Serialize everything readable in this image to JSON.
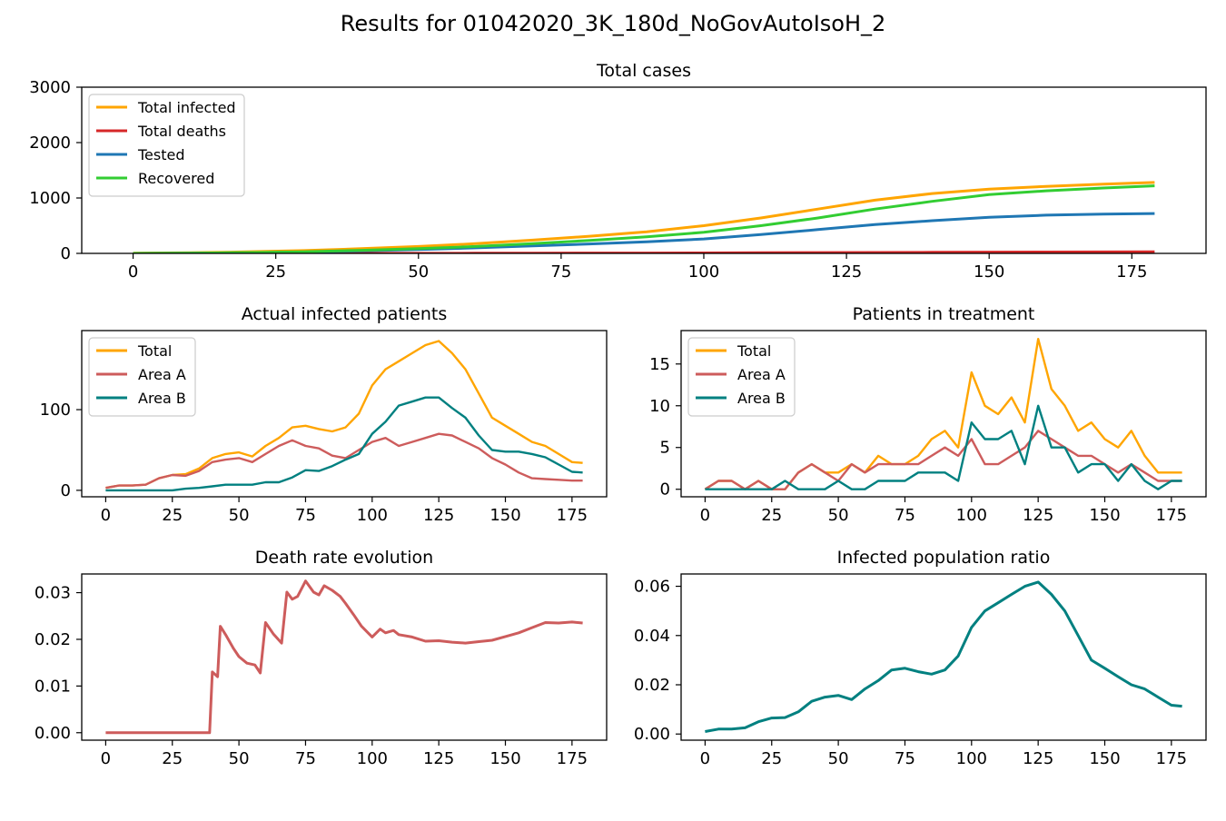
{
  "figure": {
    "title": "Results for 01042020_3K_180d_NoGovAutoIsoH_2"
  },
  "chart_data": [
    {
      "type": "line",
      "title": "Total cases",
      "xlim": [
        -9,
        188
      ],
      "ylim": [
        0,
        3000
      ],
      "xticks": [
        0,
        25,
        50,
        75,
        100,
        125,
        150,
        175
      ],
      "yticks": [
        0,
        1000,
        2000,
        3000
      ],
      "grid": false,
      "legend": "upper-left",
      "colors": {
        "Total infected": "#ffa500",
        "Total deaths": "#d62728",
        "Tested": "#1f77b4",
        "Recovered": "#32cd32"
      },
      "x": [
        0,
        10,
        20,
        30,
        40,
        50,
        60,
        70,
        80,
        90,
        100,
        110,
        120,
        130,
        140,
        150,
        160,
        170,
        179
      ],
      "series": [
        {
          "name": "Total infected",
          "values": [
            3,
            12,
            28,
            50,
            85,
            125,
            175,
            240,
            310,
            390,
            500,
            640,
            800,
            960,
            1080,
            1160,
            1210,
            1250,
            1280
          ]
        },
        {
          "name": "Total deaths",
          "values": [
            0,
            0,
            0,
            0,
            1,
            2,
            3,
            4,
            6,
            7,
            9,
            11,
            14,
            17,
            20,
            23,
            25,
            27,
            29
          ]
        },
        {
          "name": "Tested",
          "values": [
            0,
            5,
            12,
            25,
            45,
            70,
            100,
            135,
            170,
            210,
            260,
            340,
            430,
            520,
            590,
            650,
            690,
            710,
            720
          ]
        },
        {
          "name": "Recovered",
          "values": [
            0,
            5,
            15,
            30,
            55,
            85,
            125,
            175,
            235,
            300,
            380,
            500,
            640,
            800,
            940,
            1060,
            1130,
            1180,
            1220
          ]
        }
      ]
    },
    {
      "type": "line",
      "title": "Actual infected patients",
      "xlim": [
        -9,
        188
      ],
      "ylim": [
        -8,
        198
      ],
      "xticks": [
        0,
        25,
        50,
        75,
        100,
        125,
        150,
        175
      ],
      "yticks": [
        0,
        100
      ],
      "grid": false,
      "legend": "upper-left",
      "colors": {
        "Total": "#ffa500",
        "Area A": "#cd5c5c",
        "Area B": "#008080"
      },
      "x": [
        0,
        5,
        10,
        15,
        20,
        25,
        30,
        35,
        40,
        45,
        50,
        55,
        60,
        65,
        70,
        75,
        80,
        85,
        90,
        95,
        100,
        105,
        110,
        115,
        120,
        125,
        130,
        135,
        140,
        145,
        150,
        155,
        160,
        165,
        170,
        175,
        179
      ],
      "series": [
        {
          "name": "Total",
          "values": [
            3,
            6,
            6,
            7,
            15,
            19,
            20,
            27,
            40,
            45,
            47,
            42,
            55,
            65,
            78,
            80,
            76,
            73,
            78,
            95,
            130,
            150,
            160,
            170,
            180,
            185,
            170,
            150,
            120,
            90,
            80,
            70,
            60,
            55,
            45,
            35,
            34
          ]
        },
        {
          "name": "Area A",
          "values": [
            3,
            6,
            6,
            7,
            15,
            19,
            18,
            24,
            35,
            38,
            40,
            35,
            45,
            55,
            62,
            55,
            52,
            43,
            40,
            50,
            60,
            65,
            55,
            60,
            65,
            70,
            68,
            60,
            52,
            40,
            32,
            22,
            15,
            14,
            13,
            12,
            12
          ]
        },
        {
          "name": "Area B",
          "values": [
            0,
            0,
            0,
            0,
            0,
            0,
            2,
            3,
            5,
            7,
            7,
            7,
            10,
            10,
            16,
            25,
            24,
            30,
            38,
            45,
            70,
            85,
            105,
            110,
            115,
            115,
            102,
            90,
            68,
            50,
            48,
            48,
            45,
            41,
            32,
            23,
            22
          ]
        }
      ]
    },
    {
      "type": "line",
      "title": "Patients in treatment",
      "xlim": [
        -9,
        188
      ],
      "ylim": [
        -0.9,
        19
      ],
      "xticks": [
        0,
        25,
        50,
        75,
        100,
        125,
        150,
        175
      ],
      "yticks": [
        0,
        5,
        10,
        15
      ],
      "grid": false,
      "legend": "upper-left",
      "colors": {
        "Total": "#ffa500",
        "Area A": "#cd5c5c",
        "Area B": "#008080"
      },
      "x": [
        0,
        5,
        10,
        15,
        20,
        25,
        30,
        35,
        40,
        45,
        50,
        55,
        60,
        65,
        70,
        75,
        80,
        85,
        90,
        95,
        100,
        105,
        110,
        115,
        120,
        125,
        130,
        135,
        140,
        145,
        150,
        155,
        160,
        165,
        170,
        175,
        179
      ],
      "series": [
        {
          "name": "Total",
          "values": [
            0,
            1,
            1,
            0,
            1,
            0,
            0,
            2,
            3,
            2,
            2,
            3,
            2,
            4,
            3,
            3,
            4,
            6,
            7,
            5,
            14,
            10,
            9,
            11,
            8,
            18,
            12,
            10,
            7,
            8,
            6,
            5,
            7,
            4,
            2,
            2,
            2
          ]
        },
        {
          "name": "Area A",
          "values": [
            0,
            1,
            1,
            0,
            1,
            0,
            0,
            2,
            3,
            2,
            1,
            3,
            2,
            3,
            3,
            3,
            3,
            4,
            5,
            4,
            6,
            3,
            3,
            4,
            5,
            7,
            6,
            5,
            4,
            4,
            3,
            2,
            3,
            2,
            1,
            1,
            1
          ]
        },
        {
          "name": "Area B",
          "values": [
            0,
            0,
            0,
            0,
            0,
            0,
            1,
            0,
            0,
            0,
            1,
            0,
            0,
            1,
            1,
            1,
            2,
            2,
            2,
            1,
            8,
            6,
            6,
            7,
            3,
            10,
            5,
            5,
            2,
            3,
            3,
            1,
            3,
            1,
            0,
            1,
            1
          ]
        }
      ]
    },
    {
      "type": "line",
      "title": "Death rate evolution",
      "xlim": [
        -9,
        188
      ],
      "ylim": [
        -0.0016,
        0.034
      ],
      "xticks": [
        0,
        25,
        50,
        75,
        100,
        125,
        150,
        175
      ],
      "yticks": [
        0.0,
        0.01,
        0.02,
        0.03
      ],
      "grid": false,
      "colors": {
        "line": "#cd5c5c"
      },
      "x": [
        0,
        10,
        20,
        30,
        39,
        40,
        42,
        43,
        45,
        48,
        50,
        53,
        56,
        58,
        60,
        63,
        66,
        68,
        70,
        72,
        75,
        78,
        80,
        82,
        85,
        88,
        90,
        93,
        96,
        100,
        103,
        105,
        108,
        110,
        115,
        120,
        125,
        130,
        135,
        140,
        145,
        150,
        155,
        160,
        165,
        170,
        175,
        179
      ],
      "series": [
        {
          "name": "",
          "values": [
            0,
            0,
            0,
            0,
            0,
            0.013,
            0.012,
            0.0228,
            0.021,
            0.018,
            0.0163,
            0.0149,
            0.0145,
            0.0128,
            0.0236,
            0.0211,
            0.0192,
            0.0301,
            0.0286,
            0.0292,
            0.0325,
            0.0301,
            0.0295,
            0.0315,
            0.0305,
            0.0292,
            0.0277,
            0.0253,
            0.0228,
            0.0205,
            0.0222,
            0.0214,
            0.0219,
            0.021,
            0.0205,
            0.0196,
            0.0197,
            0.0194,
            0.0192,
            0.0195,
            0.0198,
            0.0206,
            0.0214,
            0.0225,
            0.0236,
            0.0235,
            0.0237,
            0.0235
          ]
        }
      ]
    },
    {
      "type": "line",
      "title": "Infected population ratio",
      "xlim": [
        -9,
        188
      ],
      "ylim": [
        -0.0025,
        0.065
      ],
      "xticks": [
        0,
        25,
        50,
        75,
        100,
        125,
        150,
        175
      ],
      "yticks": [
        0.0,
        0.02,
        0.04,
        0.06
      ],
      "grid": false,
      "colors": {
        "line": "#008080"
      },
      "x": [
        0,
        5,
        10,
        15,
        20,
        25,
        30,
        35,
        40,
        45,
        50,
        55,
        60,
        65,
        70,
        75,
        80,
        85,
        90,
        95,
        100,
        105,
        110,
        115,
        120,
        125,
        130,
        135,
        140,
        145,
        150,
        155,
        160,
        165,
        170,
        175,
        179
      ],
      "series": [
        {
          "name": "",
          "values": [
            0.001,
            0.002,
            0.002,
            0.0025,
            0.005,
            0.0065,
            0.0067,
            0.009,
            0.0133,
            0.015,
            0.0157,
            0.014,
            0.0183,
            0.0217,
            0.026,
            0.0267,
            0.0253,
            0.0243,
            0.026,
            0.0317,
            0.0433,
            0.05,
            0.0533,
            0.0567,
            0.06,
            0.0617,
            0.0567,
            0.05,
            0.04,
            0.03,
            0.0267,
            0.0233,
            0.02,
            0.0183,
            0.015,
            0.0117,
            0.0113
          ]
        }
      ]
    }
  ]
}
